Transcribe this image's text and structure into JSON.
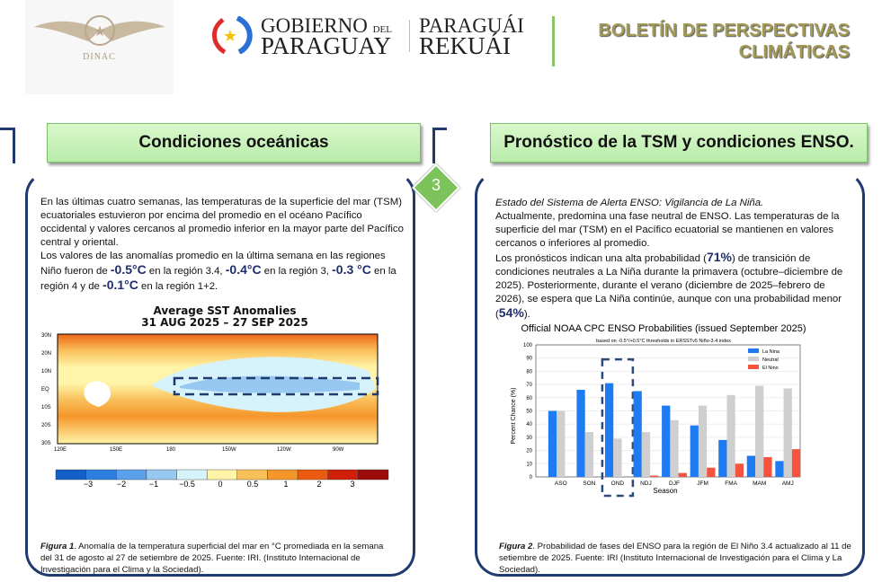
{
  "header": {
    "logo_text": "DINAC",
    "gov_line1a": "GOBIERNO",
    "gov_line1b": "DEL",
    "gov_line2": "PARAGUAY",
    "rekuai_line1": "PARAGUÁI",
    "rekuai_line2": "REKUÁI",
    "title_line1": "BOLETÍN DE PERSPECTIVAS",
    "title_line2": "CLIMÁTICAS"
  },
  "page_number": "3",
  "left": {
    "heading": "Condiciones oceánicas",
    "para1": "En las últimas cuatro semanas, las temperaturas de la superficie del mar (TSM) ecuatoriales estuvieron por encima del promedio en el océano Pacífico occidental y valores cercanos al promedio inferior en la mayor parte del Pacífico central y oriental.",
    "p2a": "Los valores de las anomalías promedio en la última semana en las regiones Niño fueron de ",
    "v1": "-0.5°C",
    "p2b": " en la región 3.4, ",
    "v2": "-0.4°C",
    "p2c": " en la región 3, ",
    "v3": "-0.3 °C",
    "p2d": " en la región 4 y de ",
    "v4": "-0.1°C",
    "p2e": " en la región 1+2.",
    "map": {
      "title1": "Average SST Anomalies",
      "title2": "31 AUG 2025 – 27 SEP 2025",
      "lat_labels": [
        "30N",
        "20N",
        "10N",
        "EQ",
        "10S",
        "20S",
        "30S"
      ],
      "lon_labels": [
        "120E",
        "150E",
        "180",
        "150W",
        "120W",
        "90W"
      ],
      "colorbar_labels": [
        "−3",
        "−2",
        "−1",
        "−0.5",
        "0",
        "0.5",
        "1",
        "2",
        "3"
      ],
      "colorbar_colors": [
        "#1560c8",
        "#2d7fe0",
        "#5aa0ea",
        "#96c8f2",
        "#d6f2fb",
        "#fff4a8",
        "#f9c05a",
        "#f5962a",
        "#ec5a12",
        "#d21f0a",
        "#9c0a0a"
      ]
    },
    "caption_label": "Figura 1",
    "caption": ". Anomalía de la temperatura superficial del mar en °C promediada en la semana del 31 de agosto al 27 de setiembre de 2025. Fuente: IRI. (Instituto Internacional de Investigación para el Clima y la Sociedad)."
  },
  "right": {
    "heading": "Pronóstico de la TSM y condiciones ENSO.",
    "status": "Estado del Sistema de Alerta ENSO: Vigilancia de La Niña.",
    "para1": "Actualmente, predomina una fase neutral de ENSO. Las temperaturas de la superficie del mar (TSM) en el Pacífico ecuatorial se mantienen en valores cercanos o inferiores al promedio.",
    "p2a": "Los pronósticos indican una alta probabilidad (",
    "v1": "71%",
    "p2b": ") de transición de condiciones neutrales a La Niña durante la primavera (octubre–diciembre de 2025). Posteriormente, durante el verano (diciembre de 2025–febrero de 2026), se espera que La Niña continúe, aunque con una probabilidad menor (",
    "v2": "54%",
    "p2c": ").",
    "caption_label": "Figura 2",
    "caption": ". Probabilidad de fases del ENSO para la región de El Niño 3.4 actualizado al 11 de setiembre de 2025. Fuente: IRI (Instituto Internacional de Investigación para el Clima y La Sociedad)."
  },
  "chart_data": {
    "type": "bar",
    "title": "Official NOAA CPC ENSO Probabilities (issued September 2025)",
    "subtitle": "based on -0.5°/+0.5°C thresholds in ERSSTv5 Niño-3.4 index",
    "xlabel": "Season",
    "ylabel": "Percent Chance (%)",
    "ylim": [
      0,
      100
    ],
    "yticks": [
      0,
      10,
      20,
      30,
      40,
      50,
      60,
      70,
      80,
      90,
      100
    ],
    "grid": true,
    "legend": "top-right",
    "highlight": "OND",
    "categories": [
      "ASO",
      "SON",
      "OND",
      "NDJ",
      "DJF",
      "JFM",
      "FMA",
      "MAM",
      "AMJ"
    ],
    "series": [
      {
        "name": "La Nina",
        "color": "#1f7bf2",
        "values": [
          50,
          66,
          71,
          65,
          54,
          39,
          28,
          16,
          12
        ]
      },
      {
        "name": "Neutral",
        "color": "#cfcfcf",
        "values": [
          50,
          34,
          29,
          34,
          43,
          54,
          62,
          69,
          67
        ]
      },
      {
        "name": "El Nino",
        "color": "#f5533d",
        "values": [
          0,
          0,
          0,
          1,
          3,
          7,
          10,
          15,
          21
        ]
      }
    ]
  }
}
